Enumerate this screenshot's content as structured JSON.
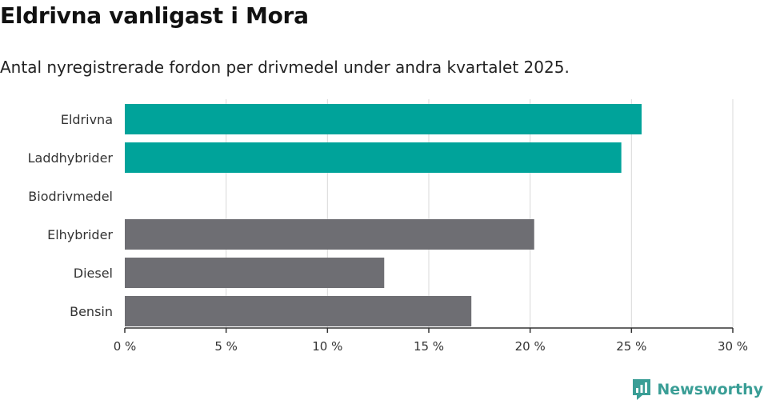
{
  "header": {
    "title": "Eldrivna vanligast i Mora",
    "subtitle": "Antal nyregistrerade fordon per drivmedel under andra kvartalet 2025."
  },
  "branding": {
    "name": "Newsworthy",
    "icon": "newsworthy-logo-icon",
    "color": "#3a9e96"
  },
  "colors": {
    "highlight": "#00a39a",
    "default": "#6e6e73",
    "grid": "#d9d9d9",
    "axis": "#333333"
  },
  "chart_data": {
    "type": "bar",
    "orientation": "horizontal",
    "categories": [
      "Eldrivna",
      "Laddhybrider",
      "Biodrivmedel",
      "Elhybrider",
      "Diesel",
      "Bensin"
    ],
    "values": [
      25.5,
      24.5,
      0,
      20.2,
      12.8,
      17.1
    ],
    "highlight": [
      true,
      true,
      false,
      false,
      false,
      false
    ],
    "xlim": [
      0,
      30
    ],
    "xticks": [
      0,
      5,
      10,
      15,
      20,
      25,
      30
    ],
    "tick_labels": [
      "0 %",
      "5 %",
      "10 %",
      "15 %",
      "20 %",
      "25 %",
      "30 %"
    ],
    "grid": true,
    "xlabel": "",
    "ylabel": ""
  }
}
